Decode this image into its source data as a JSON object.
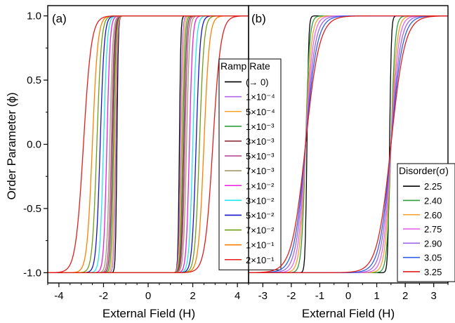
{
  "chart_data": [
    {
      "type": "line",
      "panel_label": "(a)",
      "xlabel": "External Field (H)",
      "ylabel": "Order Parameter (ϕ)",
      "xlim": [
        -4.5,
        4.5
      ],
      "ylim": [
        -1.08,
        1.08
      ],
      "xticks": [
        -4,
        -2,
        0,
        2,
        4
      ],
      "yticks": [
        -1.0,
        -0.5,
        0.0,
        0.5,
        1.0
      ],
      "ytick_labels": [
        "-1.0",
        "-0.5",
        "0.0",
        "0.5",
        "1.0"
      ],
      "grid": false,
      "legend_title": "Ramp Rate",
      "legend_position": "right",
      "series": [
        {
          "name": "(→ 0)",
          "color": "#000000",
          "up_coercive": 1.4,
          "down_coercive": -1.4,
          "width": 0.06
        },
        {
          "name": "1×10⁻⁴",
          "color": "#B366E6",
          "up_coercive": 1.45,
          "down_coercive": -1.45,
          "width": 0.08
        },
        {
          "name": "5×10⁻⁴",
          "color": "#F5A02A",
          "up_coercive": 1.5,
          "down_coercive": -1.5,
          "width": 0.09
        },
        {
          "name": "1×10⁻³",
          "color": "#2E9E3A",
          "up_coercive": 1.55,
          "down_coercive": -1.55,
          "width": 0.1
        },
        {
          "name": "3×10⁻³",
          "color": "#8B2E3C",
          "up_coercive": 1.6,
          "down_coercive": -1.6,
          "width": 0.11
        },
        {
          "name": "5×10⁻³",
          "color": "#B54E9A",
          "up_coercive": 1.65,
          "down_coercive": -1.65,
          "width": 0.12
        },
        {
          "name": "7×10⁻³",
          "color": "#A39A6A",
          "up_coercive": 1.72,
          "down_coercive": -1.72,
          "width": 0.13
        },
        {
          "name": "1×10⁻²",
          "color": "#E81EE0",
          "up_coercive": 1.85,
          "down_coercive": -1.85,
          "width": 0.14
        },
        {
          "name": "3×10⁻²",
          "color": "#1EE6F0",
          "up_coercive": 2.0,
          "down_coercive": -2.0,
          "width": 0.16
        },
        {
          "name": "5×10⁻²",
          "color": "#1414C8",
          "up_coercive": 2.15,
          "down_coercive": -2.15,
          "width": 0.18
        },
        {
          "name": "7×10⁻²",
          "color": "#6E9E14",
          "up_coercive": 2.3,
          "down_coercive": -2.3,
          "width": 0.2
        },
        {
          "name": "1×10⁻¹",
          "color": "#FF7F00",
          "up_coercive": 2.5,
          "down_coercive": -2.5,
          "width": 0.24
        },
        {
          "name": "2×10⁻¹",
          "color": "#E01E1E",
          "up_coercive": 2.9,
          "down_coercive": -2.9,
          "width": 0.35
        }
      ]
    },
    {
      "type": "line",
      "panel_label": "(b)",
      "xlabel": "External Field (H)",
      "xlim": [
        -3.5,
        3.5
      ],
      "ylim": [
        -1.08,
        1.08
      ],
      "xticks": [
        -3,
        -2,
        -1,
        0,
        1,
        2,
        3
      ],
      "grid": false,
      "legend_title": "Disorder(σ)",
      "legend_position": "bottom-right",
      "series": [
        {
          "name": "2.25",
          "color": "#000000",
          "up_coercive": 1.45,
          "down_coercive": -1.45,
          "width": 0.06
        },
        {
          "name": "2.40",
          "color": "#2E9E3A",
          "up_coercive": 1.5,
          "down_coercive": -1.5,
          "width": 0.14
        },
        {
          "name": "2.60",
          "color": "#F5A02A",
          "up_coercive": 1.5,
          "down_coercive": -1.5,
          "width": 0.2
        },
        {
          "name": "2.75",
          "color": "#E866E6",
          "up_coercive": 1.5,
          "down_coercive": -1.5,
          "width": 0.26
        },
        {
          "name": "2.90",
          "color": "#9966E6",
          "up_coercive": 1.5,
          "down_coercive": -1.5,
          "width": 0.33
        },
        {
          "name": "3.05",
          "color": "#2E5EE6",
          "up_coercive": 1.5,
          "down_coercive": -1.5,
          "width": 0.4
        },
        {
          "name": "3.25",
          "color": "#E01E1E",
          "up_coercive": 1.5,
          "down_coercive": -1.5,
          "width": 0.48
        }
      ]
    }
  ]
}
